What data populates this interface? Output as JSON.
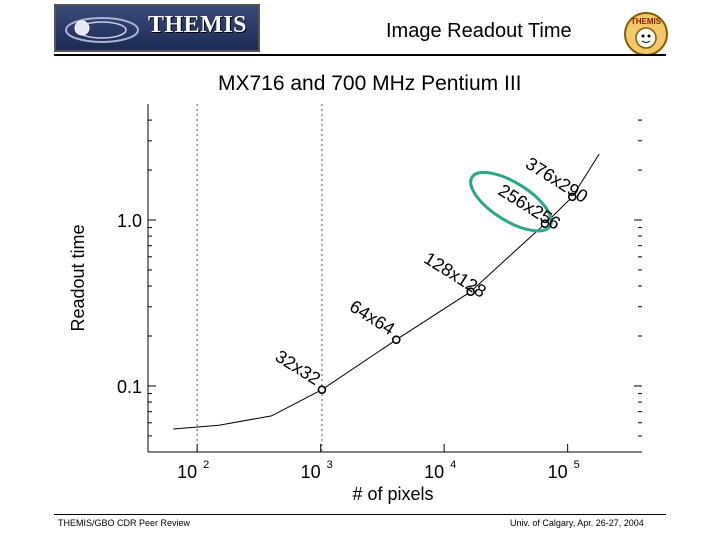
{
  "header": {
    "logo_text": "THEMIS",
    "title": "Image Readout Time",
    "right_logo_text": "THEMIS"
  },
  "footer": {
    "left": "THEMIS/GBO CDR Peer Review",
    "right": "Univ. of Calgary, Apr. 26-27, 2004"
  },
  "chart_data": {
    "type": "line",
    "title": "MX716 and 700 MHz Pentium III",
    "xlabel": "# of pixels",
    "ylabel": "Readout time",
    "xscale": "log",
    "yscale": "log",
    "xlim": [
      40,
      400000
    ],
    "ylim": [
      0.04,
      5
    ],
    "xticks": [
      {
        "value": 100,
        "base": "10",
        "exp": "2"
      },
      {
        "value": 1000,
        "base": "10",
        "exp": "3"
      },
      {
        "value": 10000,
        "base": "10",
        "exp": "4"
      },
      {
        "value": 100000,
        "base": "10",
        "exp": "5"
      }
    ],
    "yticks": [
      {
        "value": 0.1,
        "label": "0.1"
      },
      {
        "value": 1.0,
        "label": "1.0"
      }
    ],
    "vlines": [
      100,
      1024
    ],
    "series": [
      {
        "x": [
          64,
          150,
          400,
          1024,
          4096,
          16384,
          65536,
          109040,
          180000
        ],
        "y": [
          0.055,
          0.058,
          0.066,
          0.095,
          0.19,
          0.37,
          0.95,
          1.38,
          2.5
        ]
      }
    ],
    "markers": [
      {
        "x": 1024,
        "y": 0.095,
        "label": "32x32"
      },
      {
        "x": 4096,
        "y": 0.19,
        "label": "64x64"
      },
      {
        "x": 16384,
        "y": 0.37,
        "label": "128x128"
      },
      {
        "x": 65536,
        "y": 0.95,
        "label": "256x256"
      },
      {
        "x": 109040,
        "y": 1.38,
        "label": "376x290"
      }
    ],
    "highlight": {
      "color": "#2aa88a",
      "around": [
        "256x256"
      ]
    },
    "grid": false
  }
}
